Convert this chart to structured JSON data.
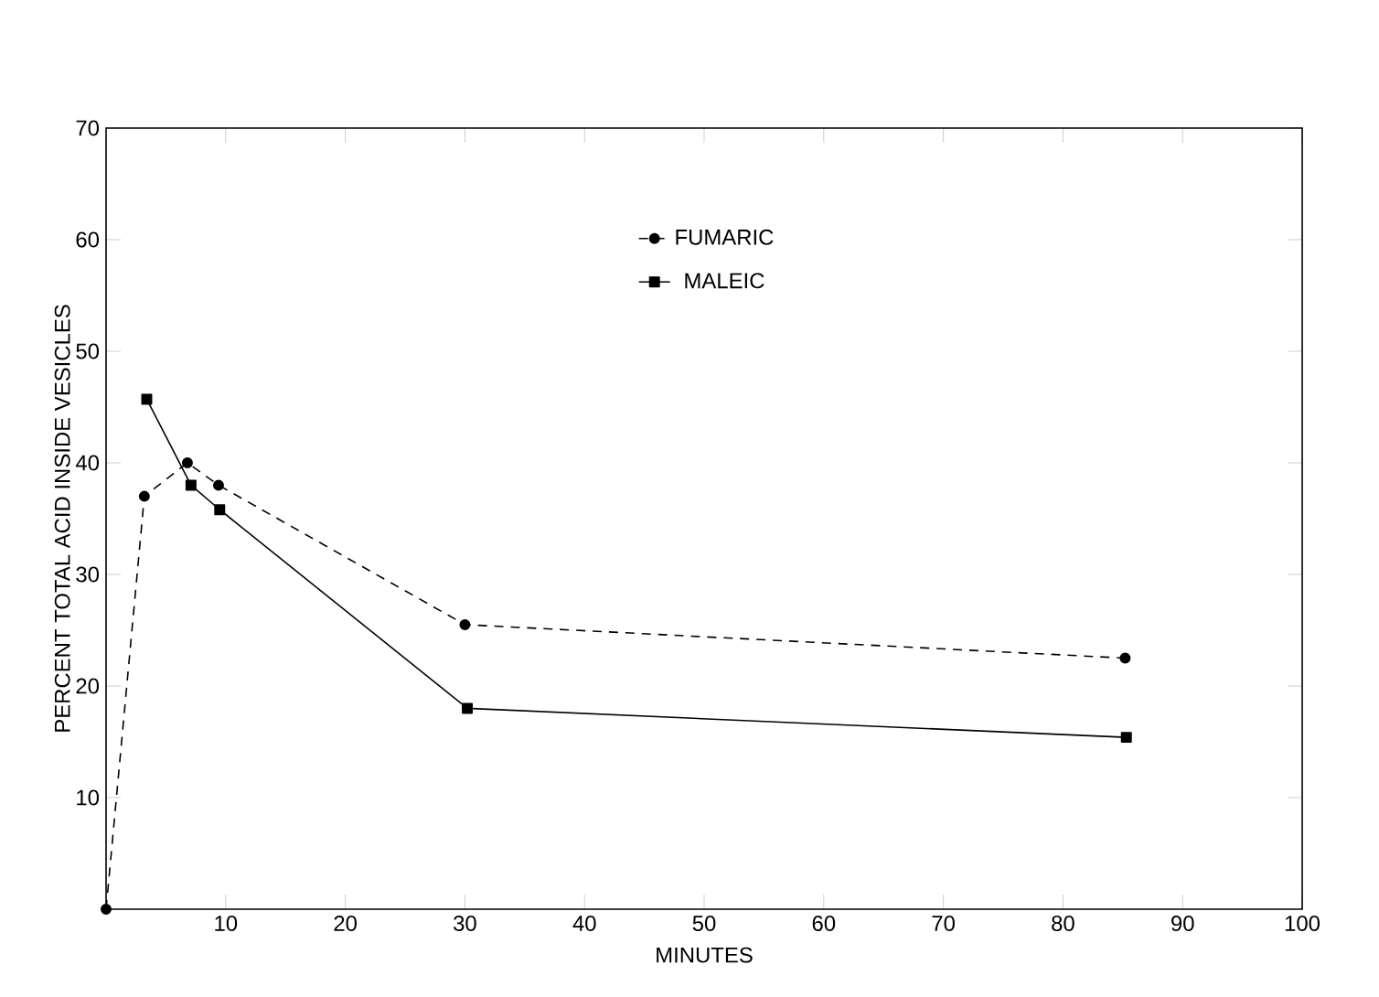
{
  "chart_data": {
    "type": "line",
    "xlabel": "MINUTES",
    "ylabel": "PERCENT TOTAL ACID INSIDE VESICLES",
    "xlim": [
      0,
      100
    ],
    "ylim": [
      0,
      70
    ],
    "xticks": [
      10,
      20,
      30,
      40,
      50,
      60,
      70,
      80,
      90,
      100
    ],
    "yticks": [
      10,
      20,
      30,
      40,
      50,
      60,
      70
    ],
    "legend": "top",
    "grid": false,
    "series": [
      {
        "name": "FUMARIC",
        "color": "#000000",
        "marker": "circle",
        "line_style": "dashed",
        "x": [
          0,
          3.2,
          6.8,
          9.4,
          30,
          85.2
        ],
        "values": [
          0,
          37,
          40,
          38,
          25.5,
          22.5
        ]
      },
      {
        "name": "MALEIC",
        "color": "#000000",
        "marker": "square",
        "line_style": "solid",
        "x": [
          3.4,
          7.1,
          9.5,
          30.2,
          85.3
        ],
        "values": [
          45.7,
          38,
          35.8,
          18,
          15.4
        ]
      }
    ]
  }
}
